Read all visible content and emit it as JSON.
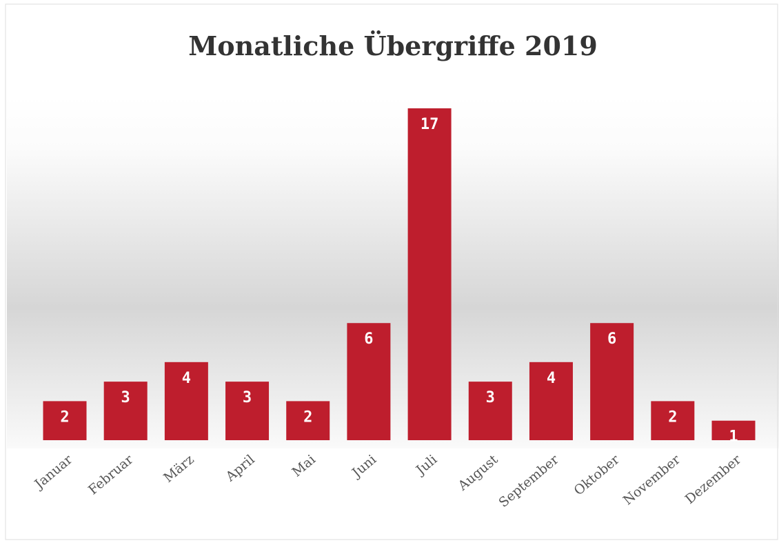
{
  "chart_data": {
    "type": "bar",
    "title": "Monatliche Übergriffe 2019",
    "categories": [
      "Januar",
      "Februar",
      "März",
      "April",
      "Mai",
      "Juni",
      "Juli",
      "August",
      "September",
      "Oktober",
      "November",
      "Dezember"
    ],
    "values": [
      2,
      3,
      4,
      3,
      2,
      6,
      17,
      3,
      4,
      6,
      2,
      1
    ],
    "color": "#be1e2d"
  }
}
